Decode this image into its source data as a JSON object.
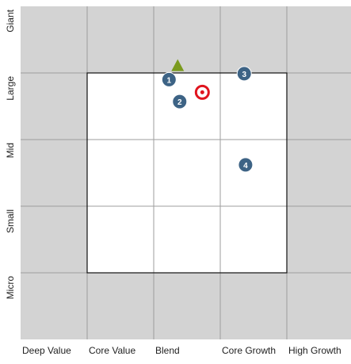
{
  "chart_data": {
    "type": "scatter",
    "x_categories": [
      "Deep Value",
      "Core Value",
      "Blend",
      "Core Growth",
      "High Growth"
    ],
    "y_categories": [
      "Micro",
      "Small",
      "Mid",
      "Large",
      "Giant"
    ],
    "xlim": [
      0,
      5
    ],
    "ylim": [
      0,
      5
    ],
    "xticks": [
      1,
      2,
      3,
      4
    ],
    "yticks": [
      1,
      2,
      3,
      4
    ],
    "grid": true,
    "highlight_box": {
      "x": [
        1,
        4
      ],
      "y": [
        1,
        4
      ]
    },
    "background_color": "#d3d3d3",
    "box_color": "#ffffff",
    "grid_color": "#9e9e9e",
    "points": [
      {
        "label": "1",
        "x": 2.23,
        "y": 3.9
      },
      {
        "label": "2",
        "x": 2.39,
        "y": 3.57
      },
      {
        "label": "3",
        "x": 3.36,
        "y": 3.99
      },
      {
        "label": "4",
        "x": 3.38,
        "y": 2.62
      }
    ],
    "point_color": "#3d6385",
    "centroid": {
      "x": 2.73,
      "y": 3.71,
      "color": "#e0141e"
    },
    "marker": {
      "x": 2.36,
      "y": 4.1,
      "color": "#7a9a1e"
    }
  }
}
